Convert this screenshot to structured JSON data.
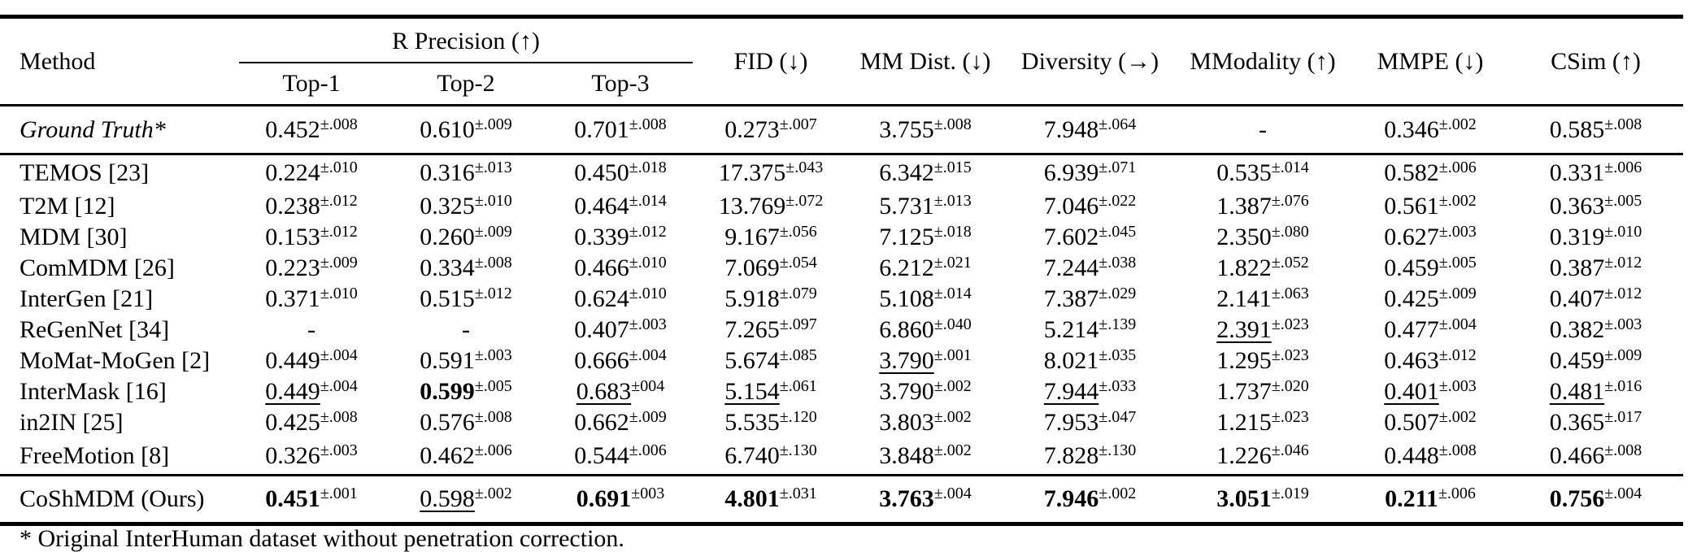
{
  "header": {
    "method": "Method",
    "r_precision": "R Precision (↑)",
    "top1": "Top-1",
    "top2": "Top-2",
    "top3": "Top-3",
    "fid": "FID (↓)",
    "mm_dist": "MM Dist. (↓)",
    "diversity": "Diversity (→)",
    "mmodality": "MModality (↑)",
    "mmpe": "MMPE (↓)",
    "csim": "CSim (↑)"
  },
  "rows": [
    {
      "method": "Ground Truth*",
      "cells": [
        {
          "v": "0.452",
          "pm": "±.008",
          "f": ""
        },
        {
          "v": "0.610",
          "pm": "±.009",
          "f": ""
        },
        {
          "v": "0.701",
          "pm": "±.008",
          "f": ""
        },
        {
          "v": "0.273",
          "pm": "±.007",
          "f": ""
        },
        {
          "v": "3.755",
          "pm": "±.008",
          "f": ""
        },
        {
          "v": "7.948",
          "pm": "±.064",
          "f": ""
        },
        {
          "v": "-",
          "pm": "",
          "f": ""
        },
        {
          "v": "0.346",
          "pm": "±.002",
          "f": ""
        },
        {
          "v": "0.585",
          "pm": "±.008",
          "f": ""
        }
      ]
    },
    {
      "method": "TEMOS [23]",
      "cells": [
        {
          "v": "0.224",
          "pm": "±.010",
          "f": ""
        },
        {
          "v": "0.316",
          "pm": "±.013",
          "f": ""
        },
        {
          "v": "0.450",
          "pm": "±.018",
          "f": ""
        },
        {
          "v": "17.375",
          "pm": "±.043",
          "f": ""
        },
        {
          "v": "6.342",
          "pm": "±.015",
          "f": ""
        },
        {
          "v": "6.939",
          "pm": "±.071",
          "f": ""
        },
        {
          "v": "0.535",
          "pm": "±.014",
          "f": ""
        },
        {
          "v": "0.582",
          "pm": "±.006",
          "f": ""
        },
        {
          "v": "0.331",
          "pm": "±.006",
          "f": ""
        }
      ]
    },
    {
      "method": "T2M [12]",
      "cells": [
        {
          "v": "0.238",
          "pm": "±.012",
          "f": ""
        },
        {
          "v": "0.325",
          "pm": "±.010",
          "f": ""
        },
        {
          "v": "0.464",
          "pm": "±.014",
          "f": ""
        },
        {
          "v": "13.769",
          "pm": "±.072",
          "f": ""
        },
        {
          "v": "5.731",
          "pm": "±.013",
          "f": ""
        },
        {
          "v": "7.046",
          "pm": "±.022",
          "f": ""
        },
        {
          "v": "1.387",
          "pm": "±.076",
          "f": ""
        },
        {
          "v": "0.561",
          "pm": "±.002",
          "f": ""
        },
        {
          "v": "0.363",
          "pm": "±.005",
          "f": ""
        }
      ]
    },
    {
      "method": "MDM [30]",
      "cells": [
        {
          "v": "0.153",
          "pm": "±.012",
          "f": ""
        },
        {
          "v": "0.260",
          "pm": "±.009",
          "f": ""
        },
        {
          "v": "0.339",
          "pm": "±.012",
          "f": ""
        },
        {
          "v": "9.167",
          "pm": "±.056",
          "f": ""
        },
        {
          "v": "7.125",
          "pm": "±.018",
          "f": ""
        },
        {
          "v": "7.602",
          "pm": "±.045",
          "f": ""
        },
        {
          "v": "2.350",
          "pm": "±.080",
          "f": ""
        },
        {
          "v": "0.627",
          "pm": "±.003",
          "f": ""
        },
        {
          "v": "0.319",
          "pm": "±.010",
          "f": ""
        }
      ]
    },
    {
      "method": "ComMDM [26]",
      "cells": [
        {
          "v": "0.223",
          "pm": "±.009",
          "f": ""
        },
        {
          "v": "0.334",
          "pm": "±.008",
          "f": ""
        },
        {
          "v": "0.466",
          "pm": "±.010",
          "f": ""
        },
        {
          "v": "7.069",
          "pm": "±.054",
          "f": ""
        },
        {
          "v": "6.212",
          "pm": "±.021",
          "f": ""
        },
        {
          "v": "7.244",
          "pm": "±.038",
          "f": ""
        },
        {
          "v": "1.822",
          "pm": "±.052",
          "f": ""
        },
        {
          "v": "0.459",
          "pm": "±.005",
          "f": ""
        },
        {
          "v": "0.387",
          "pm": "±.012",
          "f": ""
        }
      ]
    },
    {
      "method": "InterGen [21]",
      "cells": [
        {
          "v": "0.371",
          "pm": "±.010",
          "f": ""
        },
        {
          "v": "0.515",
          "pm": "±.012",
          "f": ""
        },
        {
          "v": "0.624",
          "pm": "±.010",
          "f": ""
        },
        {
          "v": "5.918",
          "pm": "±.079",
          "f": ""
        },
        {
          "v": "5.108",
          "pm": "±.014",
          "f": ""
        },
        {
          "v": "7.387",
          "pm": "±.029",
          "f": ""
        },
        {
          "v": "2.141",
          "pm": "±.063",
          "f": ""
        },
        {
          "v": "0.425",
          "pm": "±.009",
          "f": ""
        },
        {
          "v": "0.407",
          "pm": "±.012",
          "f": ""
        }
      ]
    },
    {
      "method": "ReGenNet [34]",
      "cells": [
        {
          "v": "-",
          "pm": "",
          "f": ""
        },
        {
          "v": "-",
          "pm": "",
          "f": ""
        },
        {
          "v": "0.407",
          "pm": "±.003",
          "f": ""
        },
        {
          "v": "7.265",
          "pm": "±.097",
          "f": ""
        },
        {
          "v": "6.860",
          "pm": "±.040",
          "f": ""
        },
        {
          "v": "5.214",
          "pm": "±.139",
          "f": ""
        },
        {
          "v": "2.391",
          "pm": "±.023",
          "f": "u"
        },
        {
          "v": "0.477",
          "pm": "±.004",
          "f": ""
        },
        {
          "v": "0.382",
          "pm": "±.003",
          "f": ""
        }
      ]
    },
    {
      "method": "MoMat-MoGen [2]",
      "cells": [
        {
          "v": "0.449",
          "pm": "±.004",
          "f": ""
        },
        {
          "v": "0.591",
          "pm": "±.003",
          "f": ""
        },
        {
          "v": "0.666",
          "pm": "±.004",
          "f": ""
        },
        {
          "v": "5.674",
          "pm": "±.085",
          "f": ""
        },
        {
          "v": "3.790",
          "pm": "±.001",
          "f": "u"
        },
        {
          "v": "8.021",
          "pm": "±.035",
          "f": ""
        },
        {
          "v": "1.295",
          "pm": "±.023",
          "f": ""
        },
        {
          "v": "0.463",
          "pm": "±.012",
          "f": ""
        },
        {
          "v": "0.459",
          "pm": "±.009",
          "f": ""
        }
      ]
    },
    {
      "method": "InterMask [16]",
      "cells": [
        {
          "v": "0.449",
          "pm": "±.004",
          "f": "u"
        },
        {
          "v": "0.599",
          "pm": "±.005",
          "f": "b"
        },
        {
          "v": "0.683",
          "pm": "±004",
          "f": "u"
        },
        {
          "v": "5.154",
          "pm": "±.061",
          "f": "u"
        },
        {
          "v": "3.790",
          "pm": "±.002",
          "f": ""
        },
        {
          "v": "7.944",
          "pm": "±.033",
          "f": "u"
        },
        {
          "v": "1.737",
          "pm": "±.020",
          "f": ""
        },
        {
          "v": "0.401",
          "pm": "±.003",
          "f": "u"
        },
        {
          "v": "0.481",
          "pm": "±.016",
          "f": "u"
        }
      ]
    },
    {
      "method": "in2IN [25]",
      "cells": [
        {
          "v": "0.425",
          "pm": "±.008",
          "f": ""
        },
        {
          "v": "0.576",
          "pm": "±.008",
          "f": ""
        },
        {
          "v": "0.662",
          "pm": "±.009",
          "f": ""
        },
        {
          "v": "5.535",
          "pm": "±.120",
          "f": ""
        },
        {
          "v": "3.803",
          "pm": "±.002",
          "f": ""
        },
        {
          "v": "7.953",
          "pm": "±.047",
          "f": ""
        },
        {
          "v": "1.215",
          "pm": "±.023",
          "f": ""
        },
        {
          "v": "0.507",
          "pm": "±.002",
          "f": ""
        },
        {
          "v": "0.365",
          "pm": "±.017",
          "f": ""
        }
      ]
    },
    {
      "method": "FreeMotion [8]",
      "cells": [
        {
          "v": "0.326",
          "pm": "±.003",
          "f": ""
        },
        {
          "v": "0.462",
          "pm": "±.006",
          "f": ""
        },
        {
          "v": "0.544",
          "pm": "±.006",
          "f": ""
        },
        {
          "v": "6.740",
          "pm": "±.130",
          "f": ""
        },
        {
          "v": "3.848",
          "pm": "±.002",
          "f": ""
        },
        {
          "v": "7.828",
          "pm": "±.130",
          "f": ""
        },
        {
          "v": "1.226",
          "pm": "±.046",
          "f": ""
        },
        {
          "v": "0.448",
          "pm": "±.008",
          "f": ""
        },
        {
          "v": "0.466",
          "pm": "±.008",
          "f": ""
        }
      ]
    },
    {
      "method": "CoShMDM (Ours)",
      "cells": [
        {
          "v": "0.451",
          "pm": "±.001",
          "f": "b"
        },
        {
          "v": "0.598",
          "pm": "±.002",
          "f": "u"
        },
        {
          "v": "0.691",
          "pm": "±003",
          "f": "b"
        },
        {
          "v": "4.801",
          "pm": "±.031",
          "f": "b"
        },
        {
          "v": "3.763",
          "pm": "±.004",
          "f": "b"
        },
        {
          "v": "7.946",
          "pm": "±.002",
          "f": "b"
        },
        {
          "v": "3.051",
          "pm": "±.019",
          "f": "b"
        },
        {
          "v": "0.211",
          "pm": "±.006",
          "f": "b"
        },
        {
          "v": "0.756",
          "pm": "±.004",
          "f": "b"
        }
      ]
    }
  ],
  "footnote": "* Original InterHuman dataset without penetration correction."
}
